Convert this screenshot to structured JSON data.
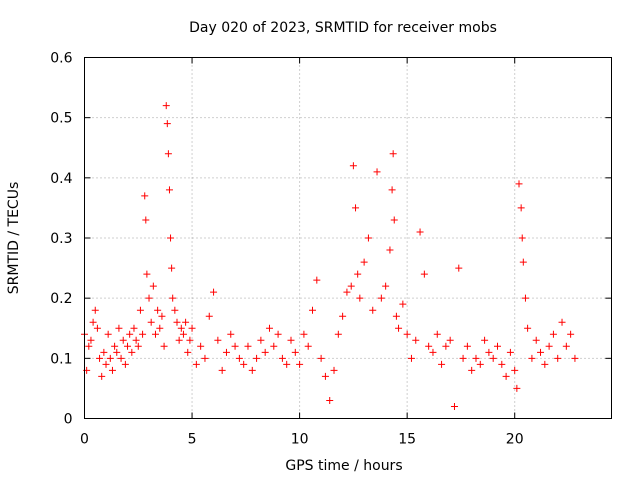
{
  "chart_data": {
    "type": "scatter",
    "title": "Day 020 of 2023, SRMTID for receiver mobs",
    "xlabel": "GPS time / hours",
    "ylabel": "SRMTID / TECUs",
    "xlim": [
      0,
      24.5
    ],
    "ylim": [
      0,
      0.6
    ],
    "x_ticks": [
      0,
      5,
      10,
      15,
      20
    ],
    "x_tick_labels": [
      "0",
      "5",
      "10",
      "15",
      "20"
    ],
    "y_ticks": [
      0,
      0.1,
      0.2,
      0.3,
      0.4,
      0.5,
      0.6
    ],
    "y_tick_labels": [
      "0",
      "0.1",
      "0.2",
      "0.3",
      "0.4",
      "0.5",
      "0.6"
    ],
    "grid": true,
    "legend": "none",
    "marker": "plus",
    "series": [
      {
        "name": "SRMTID",
        "color": "#ff0000",
        "x": [
          0.0,
          0.1,
          0.2,
          0.3,
          0.4,
          0.5,
          0.6,
          0.7,
          0.8,
          0.9,
          1.0,
          1.1,
          1.2,
          1.3,
          1.4,
          1.5,
          1.6,
          1.7,
          1.8,
          1.9,
          2.0,
          2.1,
          2.2,
          2.3,
          2.4,
          2.5,
          2.6,
          2.7,
          2.8,
          2.85,
          2.9,
          3.0,
          3.1,
          3.2,
          3.3,
          3.4,
          3.5,
          3.6,
          3.7,
          3.8,
          3.85,
          3.9,
          3.95,
          4.0,
          4.05,
          4.1,
          4.2,
          4.3,
          4.4,
          4.5,
          4.6,
          4.7,
          4.8,
          4.9,
          5.0,
          5.2,
          5.4,
          5.6,
          5.8,
          6.0,
          6.2,
          6.4,
          6.6,
          6.8,
          7.0,
          7.2,
          7.4,
          7.6,
          7.8,
          8.0,
          8.2,
          8.4,
          8.6,
          8.8,
          9.0,
          9.2,
          9.4,
          9.6,
          9.8,
          10.0,
          10.2,
          10.4,
          10.6,
          10.8,
          11.0,
          11.2,
          11.4,
          11.6,
          11.8,
          12.0,
          12.2,
          12.4,
          12.5,
          12.6,
          12.7,
          12.8,
          13.0,
          13.2,
          13.4,
          13.6,
          13.8,
          14.0,
          14.2,
          14.3,
          14.35,
          14.4,
          14.5,
          14.6,
          14.8,
          15.0,
          15.2,
          15.4,
          15.6,
          15.8,
          16.0,
          16.2,
          16.4,
          16.6,
          16.8,
          17.0,
          17.2,
          17.4,
          17.6,
          17.8,
          18.0,
          18.2,
          18.4,
          18.6,
          18.8,
          19.0,
          19.2,
          19.4,
          19.6,
          19.8,
          20.0,
          20.1,
          20.2,
          20.3,
          20.35,
          20.4,
          20.5,
          20.6,
          20.8,
          21.0,
          21.2,
          21.4,
          21.6,
          21.8,
          22.0,
          22.2,
          22.4,
          22.6,
          22.8
        ],
        "y": [
          0.14,
          0.08,
          0.12,
          0.13,
          0.16,
          0.18,
          0.15,
          0.1,
          0.07,
          0.11,
          0.09,
          0.14,
          0.1,
          0.08,
          0.12,
          0.11,
          0.15,
          0.1,
          0.13,
          0.09,
          0.12,
          0.14,
          0.11,
          0.15,
          0.13,
          0.12,
          0.18,
          0.14,
          0.37,
          0.33,
          0.24,
          0.2,
          0.16,
          0.22,
          0.14,
          0.18,
          0.15,
          0.17,
          0.12,
          0.52,
          0.49,
          0.44,
          0.38,
          0.3,
          0.25,
          0.2,
          0.18,
          0.16,
          0.13,
          0.15,
          0.14,
          0.16,
          0.11,
          0.13,
          0.15,
          0.09,
          0.12,
          0.1,
          0.17,
          0.21,
          0.13,
          0.08,
          0.11,
          0.14,
          0.12,
          0.1,
          0.09,
          0.12,
          0.08,
          0.1,
          0.13,
          0.11,
          0.15,
          0.12,
          0.14,
          0.1,
          0.09,
          0.13,
          0.11,
          0.09,
          0.14,
          0.12,
          0.18,
          0.23,
          0.1,
          0.07,
          0.03,
          0.08,
          0.14,
          0.17,
          0.21,
          0.22,
          0.42,
          0.35,
          0.24,
          0.2,
          0.26,
          0.3,
          0.18,
          0.41,
          0.2,
          0.22,
          0.28,
          0.38,
          0.44,
          0.33,
          0.17,
          0.15,
          0.19,
          0.14,
          0.1,
          0.13,
          0.31,
          0.24,
          0.12,
          0.11,
          0.14,
          0.09,
          0.12,
          0.13,
          0.02,
          0.25,
          0.1,
          0.12,
          0.08,
          0.1,
          0.09,
          0.13,
          0.11,
          0.1,
          0.12,
          0.09,
          0.07,
          0.11,
          0.08,
          0.05,
          0.39,
          0.35,
          0.3,
          0.26,
          0.2,
          0.15,
          0.1,
          0.13,
          0.11,
          0.09,
          0.12,
          0.14,
          0.1,
          0.16,
          0.12,
          0.14,
          0.1
        ]
      }
    ]
  }
}
